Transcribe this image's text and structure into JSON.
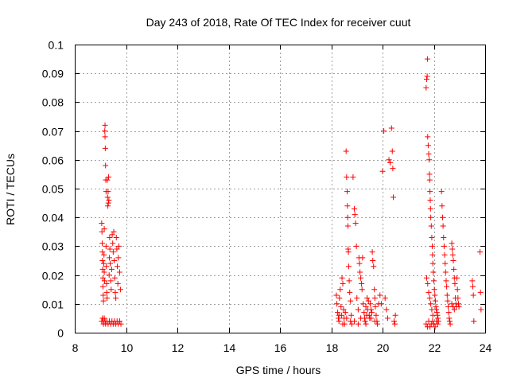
{
  "chart_data": {
    "type": "scatter",
    "title": "Day 243 of 2018, Rate Of TEC Index for receiver cuut",
    "xlabel": "GPS time / hours",
    "ylabel": "ROTI / TECUs",
    "xlim": [
      8,
      24
    ],
    "ylim": [
      0,
      0.1
    ],
    "grid": true,
    "marker": "plus",
    "color": "#ff0000",
    "x_ticks": [
      "8",
      "10",
      "12",
      "14",
      "16",
      "18",
      "20",
      "22",
      "24"
    ],
    "y_ticks": [
      "0",
      "0.01",
      "0.02",
      "0.03",
      "0.04",
      "0.05",
      "0.06",
      "0.07",
      "0.08",
      "0.09",
      "0.1"
    ],
    "series": [
      {
        "name": "ROTI",
        "points": [
          [
            9.05,
            0.038
          ],
          [
            9.06,
            0.035
          ],
          [
            9.07,
            0.031
          ],
          [
            9.08,
            0.028
          ],
          [
            9.08,
            0.025
          ],
          [
            9.09,
            0.022
          ],
          [
            9.1,
            0.019
          ],
          [
            9.1,
            0.016
          ],
          [
            9.11,
            0.013
          ],
          [
            9.12,
            0.011
          ],
          [
            9.13,
            0.024
          ],
          [
            9.14,
            0.027
          ],
          [
            9.15,
            0.036
          ],
          [
            9.15,
            0.021
          ],
          [
            9.16,
            0.018
          ],
          [
            9.17,
            0.07
          ],
          [
            9.18,
            0.072
          ],
          [
            9.18,
            0.068
          ],
          [
            9.19,
            0.064
          ],
          [
            9.2,
            0.058
          ],
          [
            9.21,
            0.053
          ],
          [
            9.22,
            0.049
          ],
          [
            9.22,
            0.03
          ],
          [
            9.23,
            0.023
          ],
          [
            9.24,
            0.017
          ],
          [
            9.25,
            0.014
          ],
          [
            9.26,
            0.012
          ],
          [
            9.27,
            0.053
          ],
          [
            9.28,
            0.047
          ],
          [
            9.29,
            0.044
          ],
          [
            9.3,
            0.049
          ],
          [
            9.31,
            0.045
          ],
          [
            9.32,
            0.054
          ],
          [
            9.33,
            0.046
          ],
          [
            9.34,
            0.02
          ],
          [
            9.35,
            0.026
          ],
          [
            9.36,
            0.033
          ],
          [
            9.37,
            0.029
          ],
          [
            9.38,
            0.024
          ],
          [
            9.4,
            0.018
          ],
          [
            9.42,
            0.015
          ],
          [
            9.44,
            0.022
          ],
          [
            9.46,
            0.034
          ],
          [
            9.48,
            0.031
          ],
          [
            9.5,
            0.028
          ],
          [
            9.52,
            0.035
          ],
          [
            9.54,
            0.025
          ],
          [
            9.56,
            0.019
          ],
          [
            9.58,
            0.014
          ],
          [
            9.6,
            0.012
          ],
          [
            9.62,
            0.033
          ],
          [
            9.64,
            0.029
          ],
          [
            9.66,
            0.023
          ],
          [
            9.68,
            0.017
          ],
          [
            9.7,
            0.026
          ],
          [
            9.72,
            0.03
          ],
          [
            9.75,
            0.021
          ],
          [
            9.78,
            0.015
          ],
          [
            9.05,
            0.004
          ],
          [
            9.08,
            0.005
          ],
          [
            9.1,
            0.004
          ],
          [
            9.12,
            0.003
          ],
          [
            9.15,
            0.005
          ],
          [
            9.18,
            0.004
          ],
          [
            9.2,
            0.003
          ],
          [
            9.25,
            0.004
          ],
          [
            9.3,
            0.003
          ],
          [
            9.35,
            0.004
          ],
          [
            9.4,
            0.003
          ],
          [
            9.45,
            0.004
          ],
          [
            9.5,
            0.003
          ],
          [
            9.55,
            0.004
          ],
          [
            9.6,
            0.003
          ],
          [
            9.65,
            0.004
          ],
          [
            9.7,
            0.003
          ],
          [
            9.75,
            0.004
          ],
          [
            9.8,
            0.003
          ],
          [
            18.2,
            0.013
          ],
          [
            18.22,
            0.01
          ],
          [
            18.25,
            0.007
          ],
          [
            18.28,
            0.005
          ],
          [
            18.3,
            0.004
          ],
          [
            18.32,
            0.012
          ],
          [
            18.35,
            0.015
          ],
          [
            18.38,
            0.009
          ],
          [
            18.4,
            0.006
          ],
          [
            18.42,
            0.019
          ],
          [
            18.45,
            0.017
          ],
          [
            18.48,
            0.008
          ],
          [
            18.5,
            0.005
          ],
          [
            18.52,
            0.003
          ],
          [
            18.55,
            0.007
          ],
          [
            18.58,
            0.063
          ],
          [
            18.6,
            0.054
          ],
          [
            18.62,
            0.049
          ],
          [
            18.63,
            0.044
          ],
          [
            18.64,
            0.04
          ],
          [
            18.65,
            0.037
          ],
          [
            18.66,
            0.029
          ],
          [
            18.67,
            0.028
          ],
          [
            18.68,
            0.023
          ],
          [
            18.7,
            0.018
          ],
          [
            18.72,
            0.014
          ],
          [
            18.75,
            0.011
          ],
          [
            18.78,
            0.006
          ],
          [
            18.8,
            0.003
          ],
          [
            18.85,
            0.054
          ],
          [
            18.9,
            0.043
          ],
          [
            18.92,
            0.041
          ],
          [
            18.95,
            0.038
          ],
          [
            18.98,
            0.03
          ],
          [
            19.0,
            0.012
          ],
          [
            19.05,
            0.008
          ],
          [
            19.08,
            0.026
          ],
          [
            19.1,
            0.024
          ],
          [
            19.12,
            0.021
          ],
          [
            19.15,
            0.019
          ],
          [
            19.18,
            0.017
          ],
          [
            19.2,
            0.015
          ],
          [
            19.22,
            0.026
          ],
          [
            19.25,
            0.01
          ],
          [
            19.28,
            0.007
          ],
          [
            19.3,
            0.005
          ],
          [
            19.32,
            0.004
          ],
          [
            19.35,
            0.009
          ],
          [
            19.38,
            0.006
          ],
          [
            19.4,
            0.012
          ],
          [
            19.42,
            0.008
          ],
          [
            19.45,
            0.011
          ],
          [
            19.48,
            0.006
          ],
          [
            19.5,
            0.005
          ],
          [
            19.52,
            0.01
          ],
          [
            19.55,
            0.008
          ],
          [
            19.58,
            0.007
          ],
          [
            19.6,
            0.028
          ],
          [
            19.62,
            0.025
          ],
          [
            19.65,
            0.023
          ],
          [
            19.68,
            0.015
          ],
          [
            19.7,
            0.012
          ],
          [
            19.72,
            0.009
          ],
          [
            19.75,
            0.006
          ],
          [
            19.78,
            0.004
          ],
          [
            19.8,
            0.003
          ],
          [
            19.85,
            0.01
          ],
          [
            19.9,
            0.013
          ],
          [
            19.95,
            0.01
          ],
          [
            20.0,
            0.056
          ],
          [
            20.05,
            0.07
          ],
          [
            20.1,
            0.012
          ],
          [
            20.15,
            0.008
          ],
          [
            20.2,
            0.005
          ],
          [
            20.25,
            0.06
          ],
          [
            20.3,
            0.059
          ],
          [
            20.35,
            0.071
          ],
          [
            20.38,
            0.063
          ],
          [
            20.4,
            0.057
          ],
          [
            20.42,
            0.047
          ],
          [
            20.45,
            0.004
          ],
          [
            20.48,
            0.003
          ],
          [
            20.5,
            0.006
          ],
          [
            18.3,
            0.006
          ],
          [
            18.45,
            0.003
          ],
          [
            18.6,
            0.005
          ],
          [
            18.75,
            0.004
          ],
          [
            18.9,
            0.004
          ],
          [
            19.05,
            0.003
          ],
          [
            19.15,
            0.005
          ],
          [
            19.35,
            0.003
          ],
          [
            19.55,
            0.005
          ],
          [
            19.7,
            0.004
          ],
          [
            21.7,
            0.085
          ],
          [
            21.72,
            0.088
          ],
          [
            21.74,
            0.089
          ],
          [
            21.75,
            0.095
          ],
          [
            21.76,
            0.068
          ],
          [
            21.78,
            0.065
          ],
          [
            21.8,
            0.062
          ],
          [
            21.82,
            0.06
          ],
          [
            21.83,
            0.055
          ],
          [
            21.84,
            0.053
          ],
          [
            21.85,
            0.049
          ],
          [
            21.86,
            0.046
          ],
          [
            21.87,
            0.043
          ],
          [
            21.88,
            0.04
          ],
          [
            21.9,
            0.037
          ],
          [
            21.92,
            0.033
          ],
          [
            21.94,
            0.03
          ],
          [
            21.95,
            0.027
          ],
          [
            21.96,
            0.024
          ],
          [
            21.98,
            0.021
          ],
          [
            22.0,
            0.018
          ],
          [
            22.02,
            0.015
          ],
          [
            22.04,
            0.013
          ],
          [
            22.06,
            0.011
          ],
          [
            22.08,
            0.009
          ],
          [
            22.1,
            0.008
          ],
          [
            22.12,
            0.007
          ],
          [
            22.14,
            0.006
          ],
          [
            22.16,
            0.005
          ],
          [
            22.18,
            0.004
          ],
          [
            21.72,
            0.019
          ],
          [
            21.76,
            0.017
          ],
          [
            21.8,
            0.014
          ],
          [
            21.84,
            0.012
          ],
          [
            21.88,
            0.01
          ],
          [
            21.92,
            0.008
          ],
          [
            21.96,
            0.006
          ],
          [
            21.7,
            0.003
          ],
          [
            21.75,
            0.002
          ],
          [
            21.8,
            0.004
          ],
          [
            21.85,
            0.002
          ],
          [
            21.9,
            0.003
          ],
          [
            21.95,
            0.004
          ],
          [
            22.0,
            0.003
          ],
          [
            22.05,
            0.002
          ],
          [
            22.1,
            0.004
          ],
          [
            22.15,
            0.003
          ],
          [
            22.3,
            0.049
          ],
          [
            22.32,
            0.044
          ],
          [
            22.34,
            0.04
          ],
          [
            22.36,
            0.037
          ],
          [
            22.38,
            0.033
          ],
          [
            22.4,
            0.03
          ],
          [
            22.42,
            0.027
          ],
          [
            22.44,
            0.024
          ],
          [
            22.46,
            0.021
          ],
          [
            22.48,
            0.018
          ],
          [
            22.5,
            0.016
          ],
          [
            22.52,
            0.013
          ],
          [
            22.54,
            0.011
          ],
          [
            22.56,
            0.009
          ],
          [
            22.58,
            0.007
          ],
          [
            22.6,
            0.005
          ],
          [
            22.62,
            0.004
          ],
          [
            22.64,
            0.003
          ],
          [
            22.7,
            0.031
          ],
          [
            22.72,
            0.029
          ],
          [
            22.74,
            0.027
          ],
          [
            22.76,
            0.025
          ],
          [
            22.78,
            0.022
          ],
          [
            22.8,
            0.019
          ],
          [
            22.82,
            0.017
          ],
          [
            22.84,
            0.012
          ],
          [
            22.86,
            0.01
          ],
          [
            22.88,
            0.009
          ],
          [
            22.7,
            0.01
          ],
          [
            22.75,
            0.009
          ],
          [
            22.8,
            0.008
          ],
          [
            22.9,
            0.019
          ],
          [
            22.92,
            0.015
          ],
          [
            22.94,
            0.012
          ],
          [
            22.96,
            0.01
          ],
          [
            22.98,
            0.009
          ],
          [
            23.5,
            0.018
          ],
          [
            23.52,
            0.016
          ],
          [
            23.54,
            0.013
          ],
          [
            23.56,
            0.004
          ],
          [
            23.8,
            0.028
          ],
          [
            23.82,
            0.014
          ],
          [
            23.84,
            0.008
          ]
        ]
      }
    ]
  }
}
